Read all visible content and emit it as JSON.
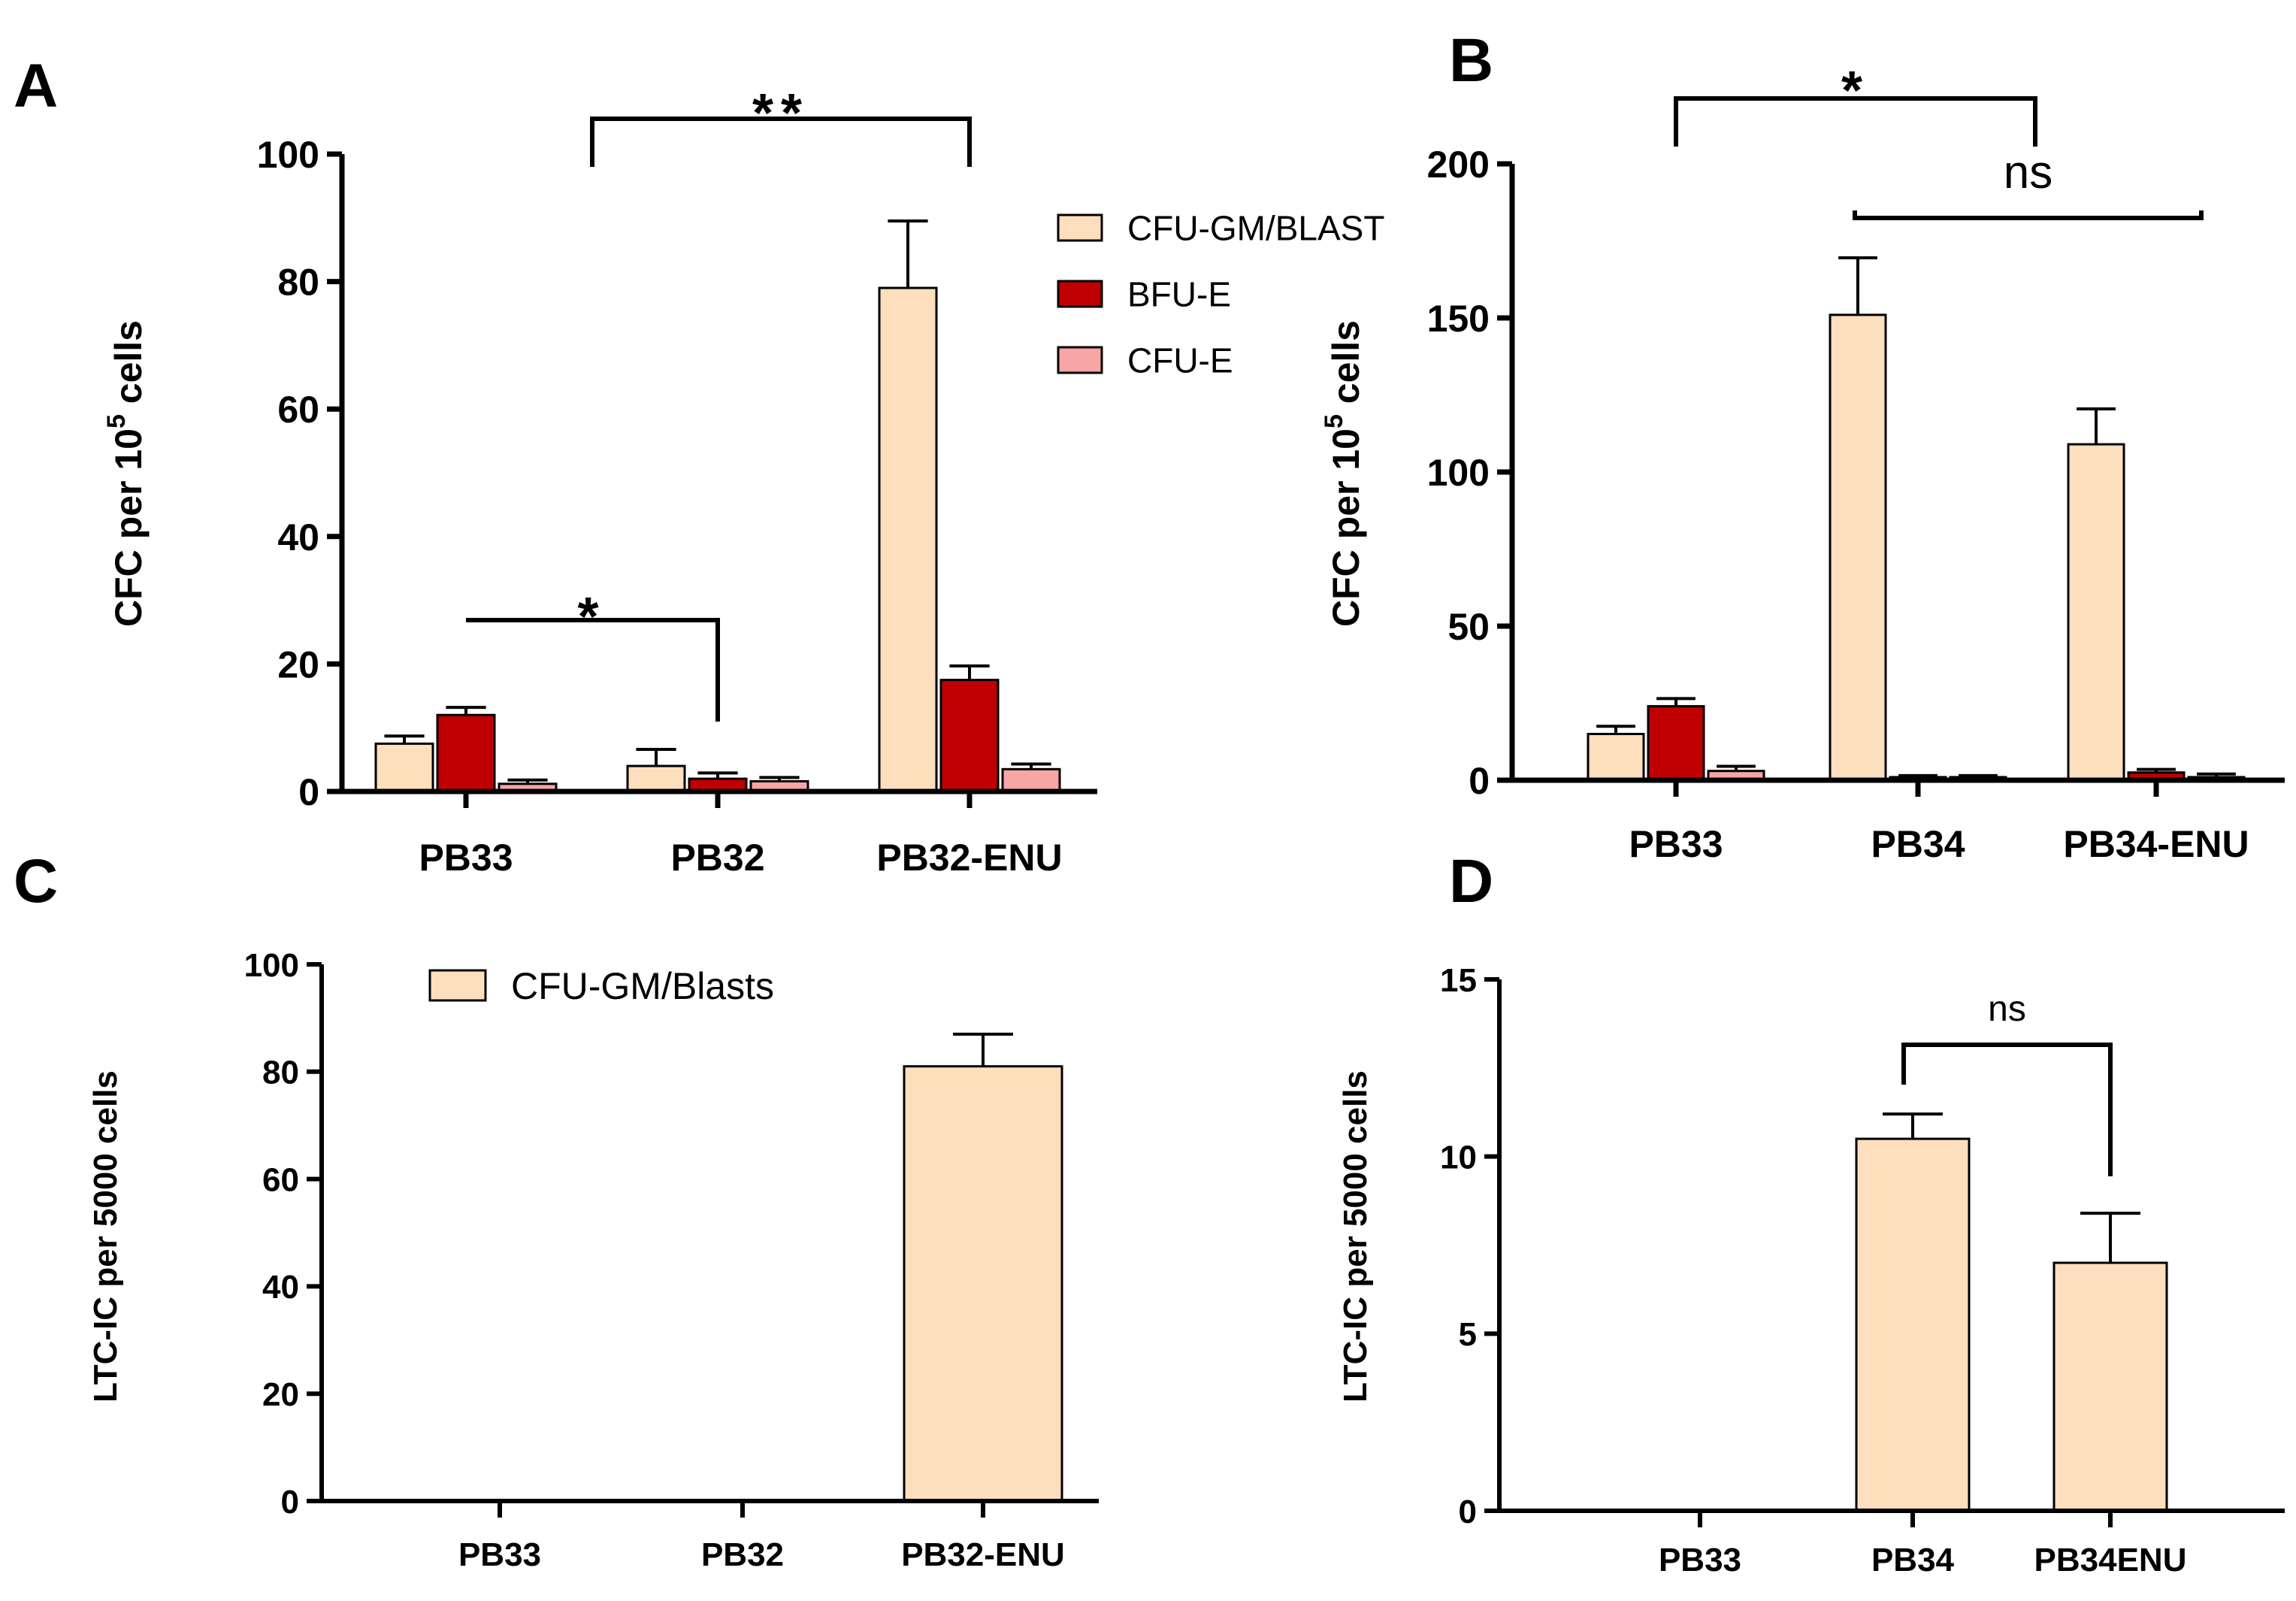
{
  "colors": {
    "cfu_gm": "#FDDFBE",
    "bfu_e": "#C00000",
    "cfu_e": "#F7A5A5",
    "stroke": "#000000"
  },
  "chart_data": [
    {
      "panel": "A",
      "type": "bar",
      "ylabel": "CFC per 10^5 cells",
      "ylabel_base": "CFC per 10",
      "ylabel_sup": "5",
      "ylabel_tail": " cells",
      "ylim": [
        0,
        100
      ],
      "yticks": [
        0,
        20,
        40,
        60,
        80,
        100
      ],
      "categories": [
        "PB33",
        "PB32",
        "PB32-ENU"
      ],
      "series": [
        {
          "name": "CFU-GM/BLAST",
          "values": [
            7.5,
            4,
            79
          ],
          "errors": [
            1.2,
            2.6,
            10.5
          ]
        },
        {
          "name": "BFU-E",
          "values": [
            12,
            2,
            17.5
          ],
          "errors": [
            1.2,
            0.9,
            2.2
          ]
        },
        {
          "name": "CFU-E",
          "values": [
            1.2,
            1.6,
            3.5
          ],
          "errors": [
            0.6,
            0.6,
            0.8
          ]
        }
      ],
      "legend": "top-right",
      "significance": [
        {
          "label": "*",
          "from": 0,
          "to": 1
        },
        {
          "label": "**",
          "from": 1,
          "to": 2
        }
      ]
    },
    {
      "panel": "B",
      "type": "bar",
      "ylabel": "CFC per 10^5 cells",
      "ylabel_base": "CFC per 10",
      "ylabel_sup": "5",
      "ylabel_tail": " cells",
      "ylim": [
        0,
        200
      ],
      "yticks": [
        0,
        50,
        100,
        150,
        200
      ],
      "categories": [
        "PB33",
        "PB34",
        "PB34-ENU"
      ],
      "series": [
        {
          "name": "CFU-GM/BLAST",
          "values": [
            15,
            151,
            109
          ],
          "errors": [
            2.5,
            18.5,
            11.5
          ]
        },
        {
          "name": "BFU-E",
          "values": [
            24,
            1,
            2.5
          ],
          "errors": [
            2.5,
            0.5,
            1
          ]
        },
        {
          "name": "CFU-E",
          "values": [
            3,
            1,
            1
          ],
          "errors": [
            1.5,
            0.5,
            1
          ]
        }
      ],
      "significance": [
        {
          "label": "*",
          "from": 0,
          "to": 1
        },
        {
          "label": "ns",
          "from": 1,
          "to": 2
        }
      ]
    },
    {
      "panel": "C",
      "type": "bar",
      "ylabel": "LTC-IC per 5000 cells",
      "ylim": [
        0,
        100
      ],
      "yticks": [
        0,
        20,
        40,
        60,
        80,
        100
      ],
      "categories": [
        "PB33",
        "PB32",
        "PB32-ENU"
      ],
      "series": [
        {
          "name": "CFU-GM/Blasts",
          "values": [
            0,
            0,
            81
          ],
          "errors": [
            0,
            0,
            6
          ]
        }
      ],
      "legend": "top-left"
    },
    {
      "panel": "D",
      "type": "bar",
      "ylabel": "LTC-IC per 5000 cells",
      "ylim": [
        0,
        15
      ],
      "yticks": [
        0,
        5,
        10,
        15
      ],
      "categories": [
        "PB33",
        "PB34",
        "PB34ENU"
      ],
      "series": [
        {
          "values": [
            0,
            10.5,
            7
          ],
          "errors": [
            0,
            0.7,
            1.4
          ]
        }
      ],
      "significance": [
        {
          "label": "ns",
          "from": 1,
          "to": 2
        }
      ]
    }
  ]
}
